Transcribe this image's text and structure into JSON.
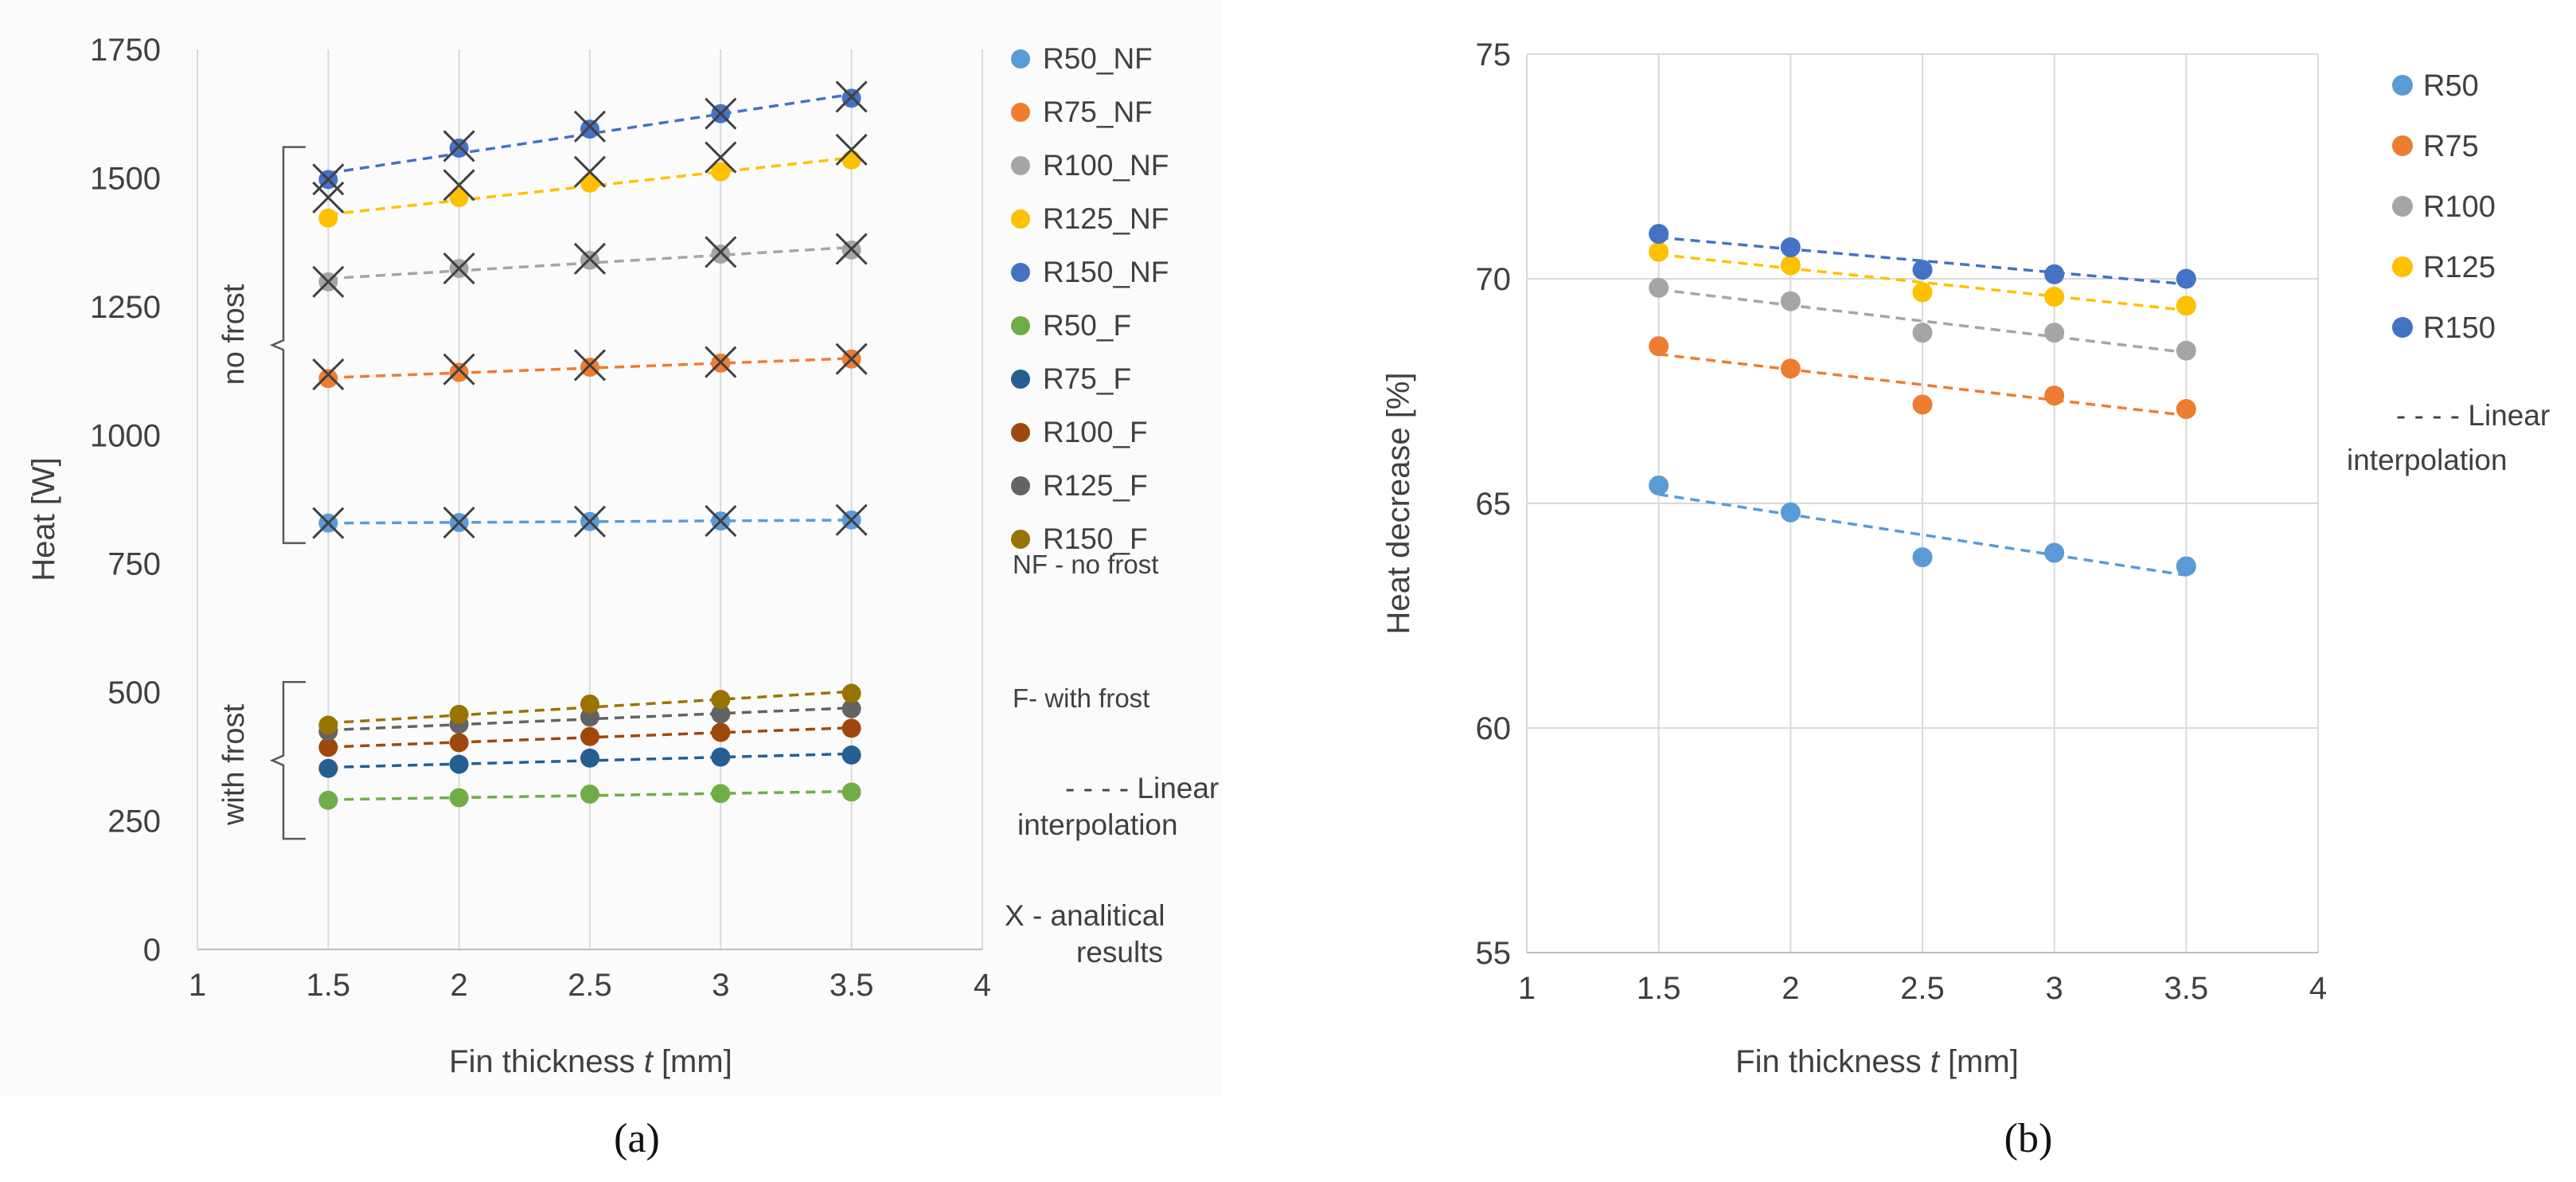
{
  "figure": {
    "captions": [
      "(a)",
      "(b)"
    ]
  },
  "chart_data": [
    {
      "type": "scatter",
      "panel": "(a)",
      "xlabel_prefix": "Fin thickness ",
      "xlabel_var": "t",
      "xlabel_unit": " [mm]",
      "ylabel": "Heat [W]",
      "xlim": [
        1,
        4
      ],
      "ylim": [
        0,
        1750
      ],
      "xticks": [
        "1",
        "1.5",
        "2",
        "2.5",
        "3",
        "3.5",
        "4"
      ],
      "yticks": [
        "0",
        "250",
        "500",
        "750",
        "1000",
        "1250",
        "1500",
        "1750"
      ],
      "grid": "vertical",
      "legend_position": "right",
      "x": [
        1.5,
        2,
        2.5,
        3,
        3.5
      ],
      "series": [
        {
          "name": "R50_NF",
          "color": "#5B9BD5",
          "values": [
            829,
            830,
            832,
            833,
            835
          ],
          "analytical": [
            829,
            830,
            832,
            833,
            835
          ]
        },
        {
          "name": "R75_NF",
          "color": "#ED7D31",
          "values": [
            1110,
            1122,
            1132,
            1140,
            1148
          ],
          "analytical": [
            1118,
            1128,
            1136,
            1142,
            1148
          ]
        },
        {
          "name": "R100_NF",
          "color": "#A5A5A5",
          "values": [
            1298,
            1324,
            1340,
            1352,
            1360
          ],
          "analytical": [
            1298,
            1324,
            1343,
            1356,
            1362
          ]
        },
        {
          "name": "R125_NF",
          "color": "#FFC000",
          "values": [
            1422,
            1462,
            1490,
            1512,
            1535
          ],
          "analytical": [
            1462,
            1486,
            1512,
            1540,
            1555
          ]
        },
        {
          "name": "R150_NF",
          "color": "#4472C4",
          "values": [
            1497,
            1558,
            1595,
            1625,
            1655
          ],
          "analytical": [
            1497,
            1562,
            1600,
            1625,
            1658
          ]
        },
        {
          "name": "R50_F",
          "color": "#70AD47",
          "values": [
            290,
            295,
            302,
            303,
            306
          ]
        },
        {
          "name": "R75_F",
          "color": "#255E91",
          "values": [
            352,
            360,
            372,
            374,
            378
          ]
        },
        {
          "name": "R100_F",
          "color": "#9E480E",
          "values": [
            393,
            402,
            414,
            422,
            430
          ]
        },
        {
          "name": "R125_F",
          "color": "#636363",
          "values": [
            424,
            438,
            452,
            458,
            468
          ]
        },
        {
          "name": "R150_F",
          "color": "#997300",
          "values": [
            436,
            457,
            477,
            486,
            498
          ]
        }
      ],
      "legend_notes": [
        "NF - no frost",
        "F- with frost",
        "- - - - Linear",
        "interpolation",
        "X - analitical",
        "results"
      ],
      "annotations": [
        "no frost",
        "with frost"
      ]
    },
    {
      "type": "scatter",
      "panel": "(b)",
      "xlabel_prefix": "Fin thickness ",
      "xlabel_var": "t",
      "xlabel_unit": " [mm]",
      "ylabel": "Heat decrease [%]",
      "xlim": [
        1,
        4
      ],
      "ylim": [
        55,
        75
      ],
      "xticks": [
        "1",
        "1.5",
        "2",
        "2.5",
        "3",
        "3.5",
        "4"
      ],
      "yticks": [
        "55",
        "60",
        "65",
        "70",
        "75"
      ],
      "grid": "both",
      "legend_position": "right",
      "x": [
        1.5,
        2,
        2.5,
        3,
        3.5
      ],
      "series": [
        {
          "name": "R50",
          "color": "#5B9BD5",
          "values": [
            65.4,
            64.8,
            63.8,
            63.9,
            63.6
          ]
        },
        {
          "name": "R75",
          "color": "#ED7D31",
          "values": [
            68.5,
            68.0,
            67.2,
            67.4,
            67.1
          ]
        },
        {
          "name": "R100",
          "color": "#A5A5A5",
          "values": [
            69.8,
            69.5,
            68.8,
            68.8,
            68.4
          ]
        },
        {
          "name": "R125",
          "color": "#FFC000",
          "values": [
            70.6,
            70.3,
            69.7,
            69.6,
            69.4
          ]
        },
        {
          "name": "R150",
          "color": "#4472C4",
          "values": [
            71.0,
            70.7,
            70.2,
            70.1,
            70.0
          ]
        }
      ],
      "legend_notes": [
        "- - - - Linear",
        "interpolation"
      ]
    }
  ]
}
